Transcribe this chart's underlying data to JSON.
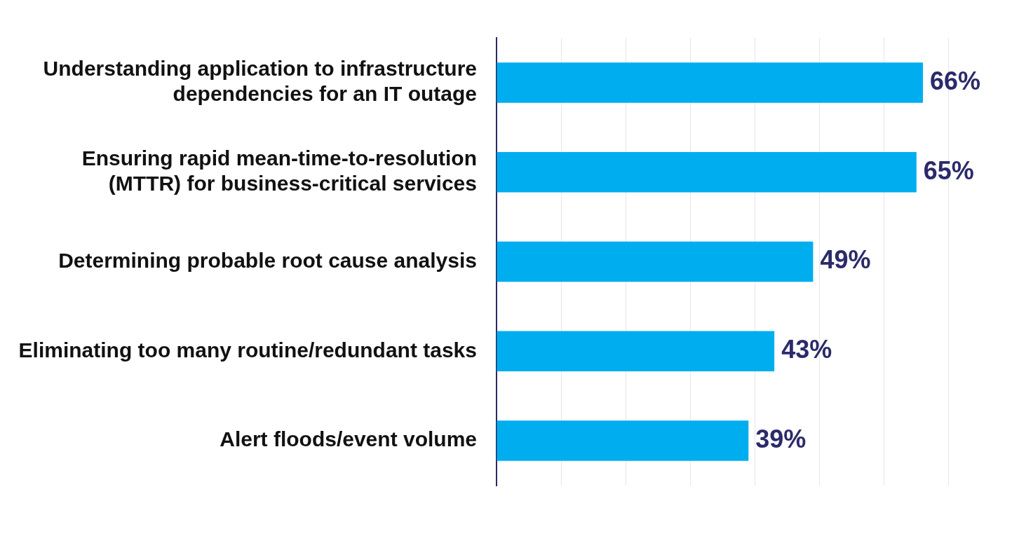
{
  "chart_data": {
    "type": "bar",
    "orientation": "horizontal",
    "categories": [
      "Understanding application to infrastructure dependencies for an IT outage",
      "Ensuring rapid mean-time-to-resolution (MTTR) for business-critical services",
      "Determining probable root cause analysis",
      "Eliminating too many routine/redundant tasks",
      "Alert floods/event volume"
    ],
    "values": [
      66,
      65,
      49,
      43,
      39
    ],
    "value_labels": [
      "66%",
      "65%",
      "49%",
      "43%",
      "39%"
    ],
    "color": "#00aeef",
    "grid": "x",
    "tick_labels": "y",
    "legend": false
  }
}
